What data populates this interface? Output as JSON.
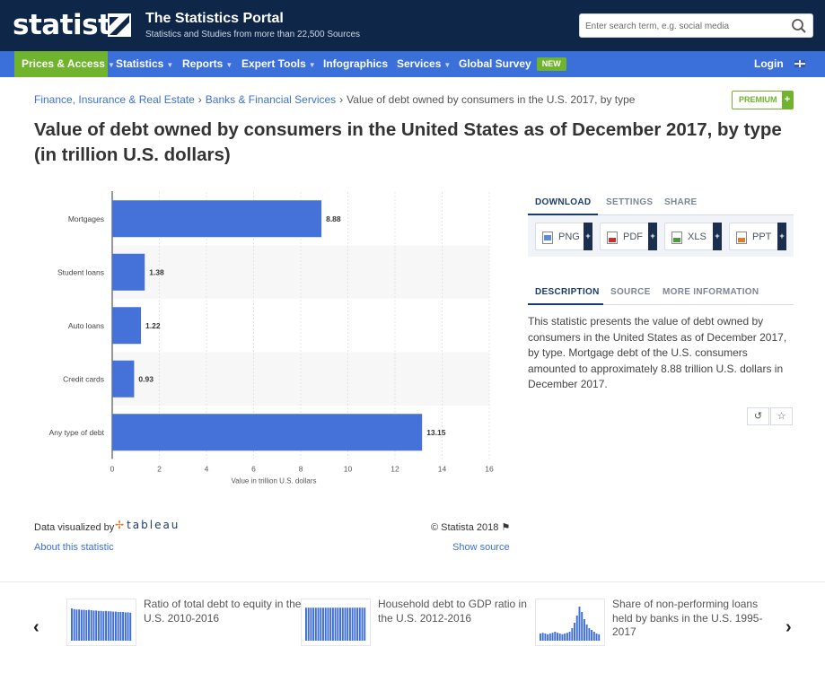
{
  "header": {
    "logo": "statista",
    "portal_title": "The Statistics Portal",
    "portal_subtitle": "Statistics and Studies from more than 22,500 Sources",
    "search_placeholder": "Enter search term, e.g. social media"
  },
  "nav": {
    "items": [
      {
        "label": "Prices & Access",
        "active": true
      },
      {
        "label": "Statistics"
      },
      {
        "label": "Reports"
      },
      {
        "label": "Expert Tools"
      },
      {
        "label": "Infographics"
      },
      {
        "label": "Services"
      },
      {
        "label": "Global Survey"
      }
    ],
    "new_badge": "NEW",
    "login": "Login"
  },
  "breadcrumb": {
    "crumbs": [
      "Finance, Insurance & Real Estate",
      "Banks & Financial Services"
    ],
    "current": "Value of debt owned by consumers in the U.S. 2017, by type",
    "separator": "›"
  },
  "premium_label": "PREMIUM",
  "plus": "+",
  "page_title": "Value of debt owned by consumers in the United States as of December 2017, by type (in trillion U.S. dollars)",
  "chart_data": {
    "type": "bar",
    "orientation": "horizontal",
    "categories": [
      "Mortgages",
      "Student loans",
      "Auto loans",
      "Credit cards",
      "Any type of debt"
    ],
    "values": [
      8.88,
      1.38,
      1.22,
      0.93,
      13.15
    ],
    "value_labels": [
      "8.88",
      "1.38",
      "1.22",
      "0.93",
      "13.15"
    ],
    "xlabel": "Value in trillion U.S. dollars",
    "xlim": [
      0,
      16
    ],
    "xticks": [
      0,
      2,
      4,
      6,
      8,
      10,
      12,
      14,
      16
    ],
    "xtick_labels": [
      "0",
      "2",
      "4",
      "6",
      "8",
      "10",
      "12",
      "14",
      "16"
    ],
    "bar_color": "#4472d9"
  },
  "chart_footer": {
    "data_visualized_by": "Data visualized by",
    "tableau": "tableau",
    "about": "About this statistic",
    "copyright": "© Statista 2018",
    "show_source": "Show source"
  },
  "download_tabs": [
    "DOWNLOAD",
    "SETTINGS",
    "SHARE"
  ],
  "download_buttons": [
    "PNG",
    "PDF",
    "XLS",
    "PPT"
  ],
  "info_tabs": [
    "DESCRIPTION",
    "SOURCE",
    "MORE INFORMATION"
  ],
  "description": "This statistic presents the value of debt owned by consumers in the United States as of December 2017, by type. Mortgage debt of the U.S. consumers amounted to approximately 8.88 trillion U.S. dollars in December 2017.",
  "action_icons": [
    "↺",
    "☆"
  ],
  "related": {
    "prev_arrow": "‹",
    "next_arrow": "›",
    "items": [
      {
        "title": "Ratio of total debt to equity in the U.S. 2010-2016"
      },
      {
        "title": "Household debt to GDP ratio in the U.S. 2012-2016"
      },
      {
        "title": "Share of non-performing loans held by banks in the U.S. 1995-2017"
      }
    ]
  },
  "colors": {
    "header_bg": "#0e2749",
    "nav_bg": "#3b6fd9",
    "accent_green": "#6fb42c",
    "bar": "#4472d9"
  }
}
